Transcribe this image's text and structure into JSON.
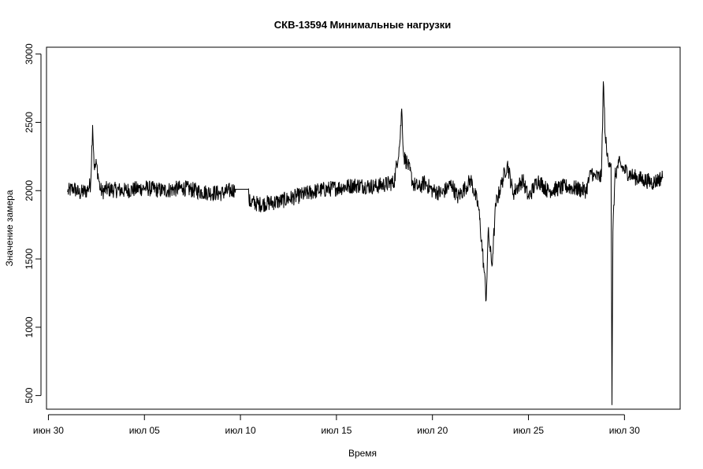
{
  "chart_data": {
    "type": "line",
    "title": "СКВ-13594 Минимальные нагрузки",
    "xlabel": "Время",
    "ylabel": "Значение замера",
    "x_ticks": [
      "июн 30",
      "июл 05",
      "июл 10",
      "июл 15",
      "июл 20",
      "июл 25",
      "июл 30"
    ],
    "x_tick_days": [
      0,
      5,
      10,
      15,
      20,
      25,
      30
    ],
    "y_ticks": [
      500,
      1000,
      1500,
      2000,
      2500,
      3000
    ],
    "xlim": [
      -0.1,
      32.9
    ],
    "ylim": [
      400,
      3050
    ],
    "grid": false,
    "legend": "none",
    "line_color": "#000000",
    "series": [
      {
        "x": [
          1.0,
          1.3,
          1.6,
          2.0,
          2.2,
          2.3,
          2.4,
          2.5,
          2.6,
          2.7,
          2.8,
          3.0,
          4.0,
          5.0,
          6.0,
          7.0,
          8.0,
          9.0,
          9.7,
          9.75,
          10.4,
          10.45,
          11.0,
          12.0,
          13.0,
          14.0,
          15.0,
          16.0,
          17.0,
          18.0,
          18.3,
          18.4,
          18.5,
          18.7,
          19.0,
          19.3,
          19.6,
          20.0,
          20.5,
          21.0,
          21.3,
          21.7,
          22.0,
          22.4,
          22.7,
          22.8,
          22.9,
          23.1,
          23.3,
          23.6,
          23.9,
          24.2,
          24.7,
          25.0,
          25.5,
          26.0,
          27.0,
          28.0,
          28.3,
          28.4,
          28.8,
          28.9,
          29.0,
          29.1,
          29.3,
          29.35,
          29.4,
          29.5,
          29.7,
          30.0,
          30.5,
          31.0,
          31.5,
          32.0
        ],
        "y": [
          1990,
          2020,
          1980,
          2000,
          2050,
          2480,
          2150,
          2200,
          2100,
          2010,
          1990,
          2010,
          2000,
          2020,
          2000,
          2020,
          1990,
          1980,
          2010,
          2010,
          2010,
          1920,
          1900,
          1920,
          1960,
          2000,
          2020,
          2040,
          2030,
          2060,
          2350,
          2600,
          2250,
          2200,
          2050,
          2020,
          2060,
          2000,
          1980,
          2050,
          1950,
          2020,
          2080,
          1880,
          1400,
          1200,
          1700,
          1450,
          1900,
          2050,
          2200,
          1980,
          2080,
          1950,
          2080,
          2000,
          2030,
          2000,
          2150,
          2100,
          2100,
          2800,
          2400,
          2250,
          2200,
          430,
          1700,
          2100,
          2200,
          2150,
          2100,
          2080,
          2060,
          2100
        ]
      }
    ]
  }
}
